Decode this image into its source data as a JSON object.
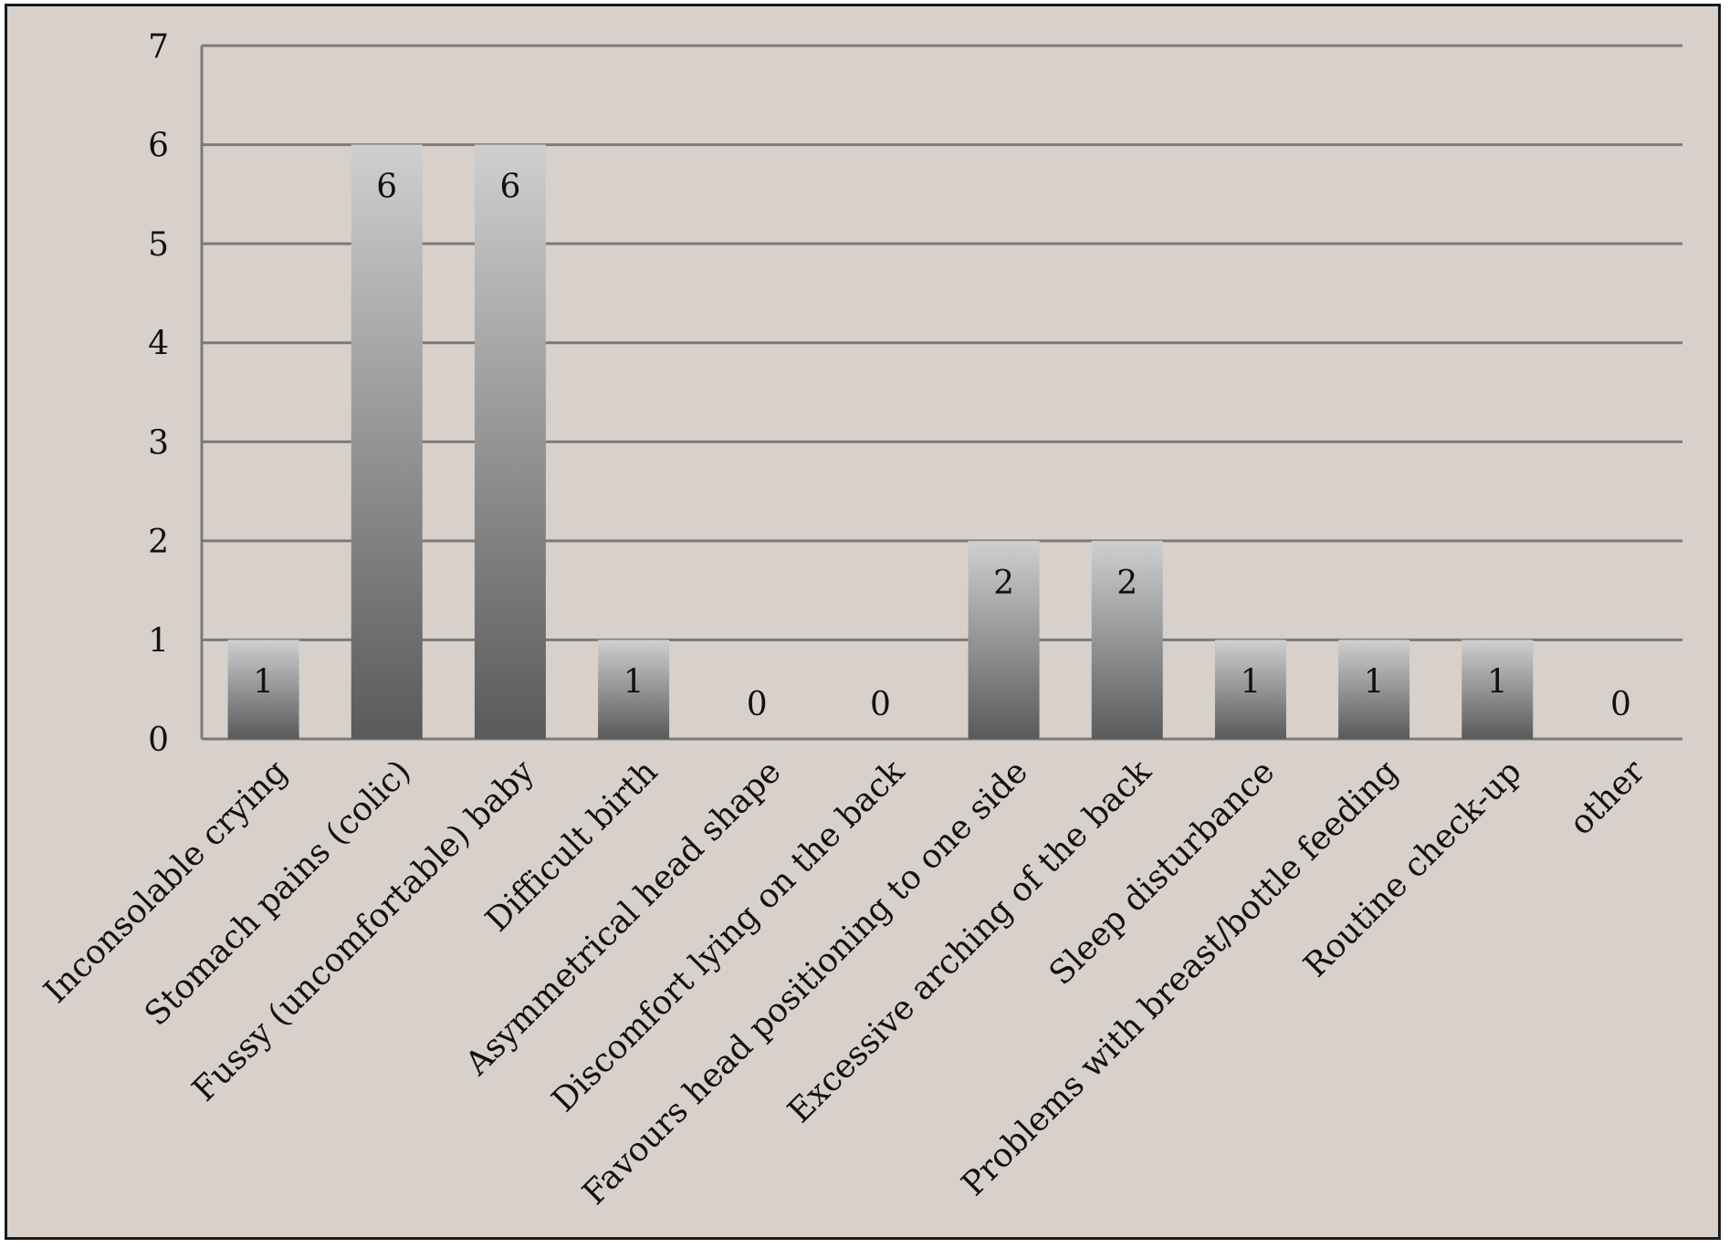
{
  "chart_data": {
    "type": "bar",
    "title": "",
    "xlabel": "",
    "ylabel": "",
    "ylim": [
      0,
      7
    ],
    "yticks": [
      0,
      1,
      2,
      3,
      4,
      5,
      6,
      7
    ],
    "grid": true,
    "legend": "none",
    "categories": [
      "Inconsolable crying",
      "Stomach pains (colic)",
      "Fussy (uncomfortable) baby",
      "Difficult birth",
      "Asymmetrical head shape",
      "Discomfort lying on the back",
      "Favours head positioning to one side",
      "Excessive arching of the back",
      "Sleep disturbance",
      "Problems with breast/bottle feeding",
      "Routine check-up",
      "other"
    ],
    "values": [
      1,
      6,
      6,
      1,
      0,
      0,
      2,
      2,
      1,
      1,
      1,
      0
    ],
    "colors": {
      "background": "#d8d1cb",
      "bar_top": "#cfcfcf",
      "bar_bottom": "#5a5a5a",
      "gridline": "#7a7a7a",
      "text": "#111111"
    }
  }
}
